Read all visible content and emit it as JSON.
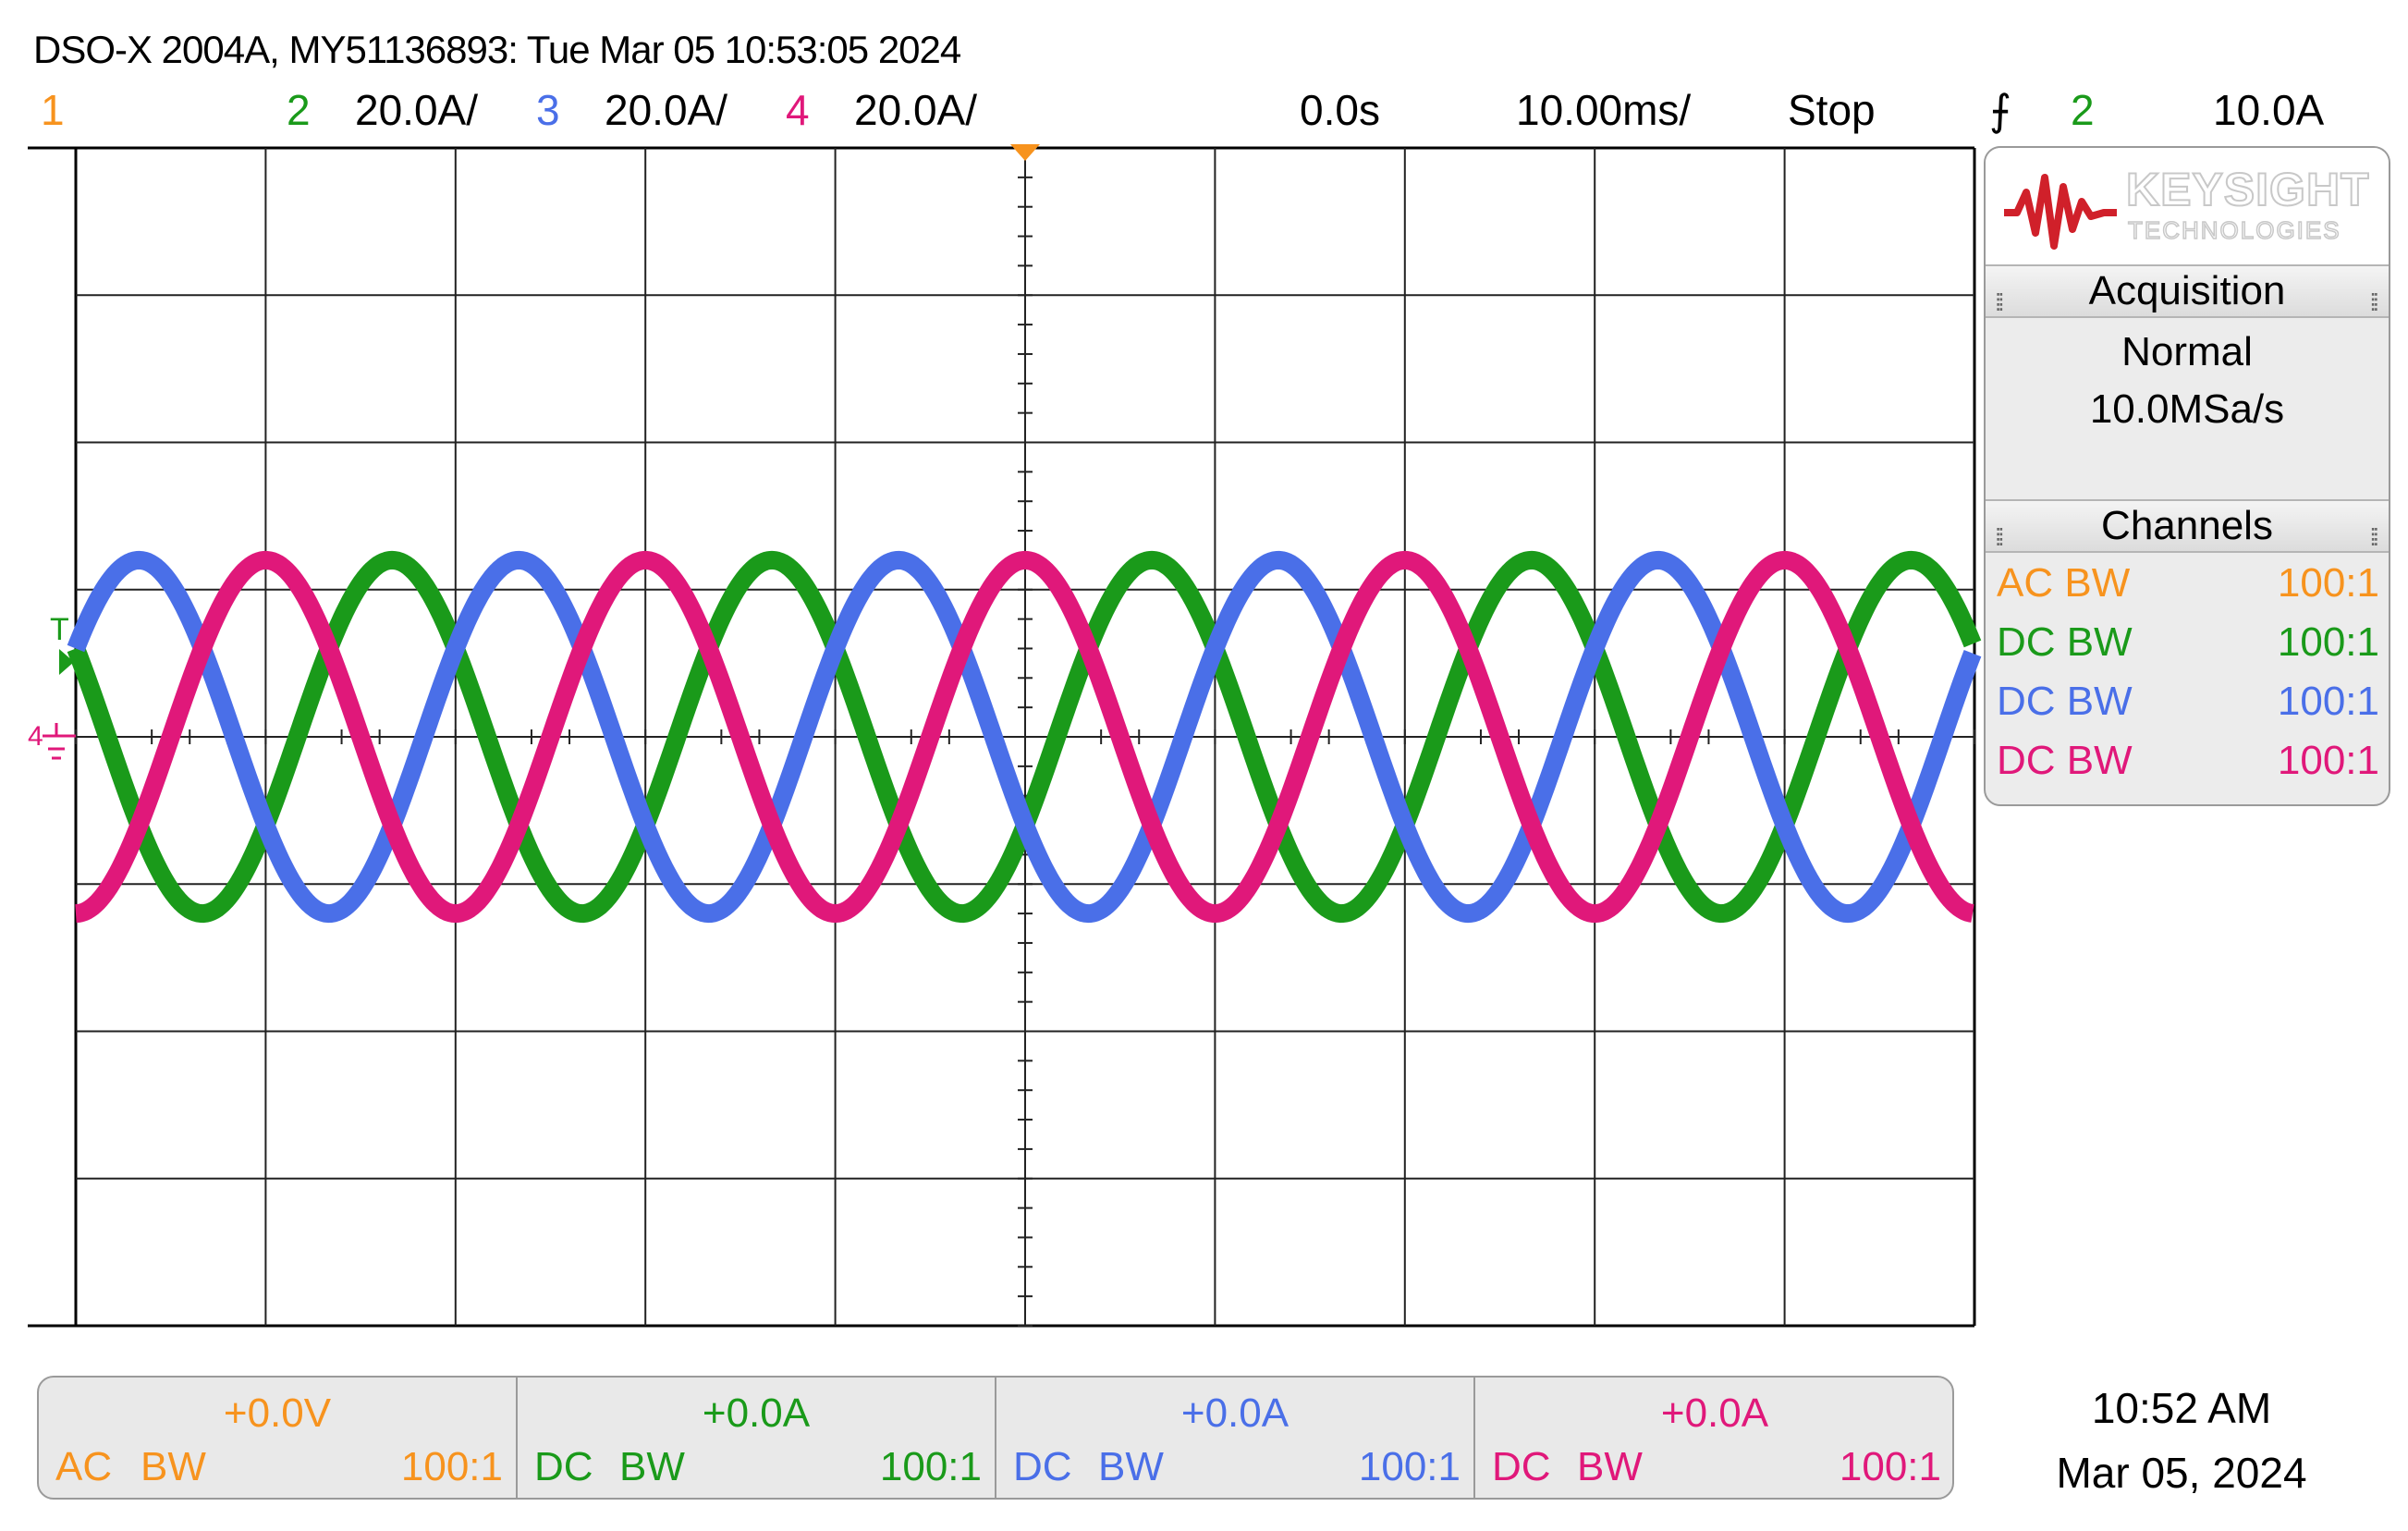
{
  "title": "DSO-X 2004A, MY51136893: Tue Mar 05 10:53:05 2024",
  "colors": {
    "ch1": "#f7931e",
    "ch2": "#1a9a1a",
    "ch3": "#4a6fe8",
    "ch4": "#e0187a",
    "trigger_marker": "#f7931e"
  },
  "header": {
    "ch1_label": "1",
    "ch2_label": "2",
    "ch2_scale": "20.0A/",
    "ch3_label": "3",
    "ch3_scale": "20.0A/",
    "ch4_label": "4",
    "ch4_scale": "20.0A/",
    "time_delay": "0.0s",
    "time_scale": "10.00ms/",
    "run_state": "Stop",
    "trigger_icon": "rising-edge-icon",
    "trigger_source": "2",
    "trigger_level": "10.0A"
  },
  "display": {
    "trigger_level_marker": "T",
    "ground_marker": "4",
    "divisions_x": 10,
    "divisions_y": 8
  },
  "waveforms": {
    "period_divisions": 2.0,
    "amplitude_divisions": 1.2,
    "series": [
      {
        "channel": "2",
        "phase_deg": 150
      },
      {
        "channel": "3",
        "phase_deg": 30
      },
      {
        "channel": "4",
        "phase_deg": 270
      }
    ]
  },
  "side_panel": {
    "logo_name": "KEYSIGHT",
    "logo_sub": "TECHNOLOGIES",
    "acquisition_title": "Acquisition",
    "acquisition_mode": "Normal",
    "sample_rate": "10.0MSa/s",
    "channels_title": "Channels",
    "channels": [
      {
        "coupling": "AC",
        "bw": "BW",
        "probe": "100:1"
      },
      {
        "coupling": "DC",
        "bw": "BW",
        "probe": "100:1"
      },
      {
        "coupling": "DC",
        "bw": "BW",
        "probe": "100:1"
      },
      {
        "coupling": "DC",
        "bw": "BW",
        "probe": "100:1"
      }
    ]
  },
  "channel_bar": [
    {
      "offset": "+0.0V",
      "coupling": "AC",
      "bw": "BW",
      "probe": "100:1"
    },
    {
      "offset": "+0.0A",
      "coupling": "DC",
      "bw": "BW",
      "probe": "100:1"
    },
    {
      "offset": "+0.0A",
      "coupling": "DC",
      "bw": "BW",
      "probe": "100:1"
    },
    {
      "offset": "+0.0A",
      "coupling": "DC",
      "bw": "BW",
      "probe": "100:1"
    }
  ],
  "clock": {
    "time": "10:52 AM",
    "date": "Mar 05, 2024"
  }
}
